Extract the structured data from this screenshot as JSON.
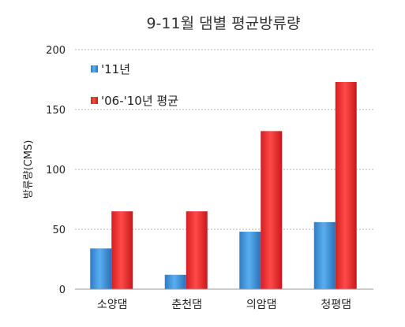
{
  "chart_data": {
    "type": "bar",
    "title": "9-11월 댐별 평균방류량",
    "xlabel": "",
    "ylabel": "방류량(CMS)",
    "ylim": [
      0,
      200
    ],
    "yticks": [
      "0",
      "50",
      "100",
      "150",
      "200"
    ],
    "grid": true,
    "legend_position": "top-left",
    "categories": [
      "소양댐",
      "춘천댐",
      "의암댐",
      "청평댐"
    ],
    "series": [
      {
        "name": "'11년",
        "values": [
          34,
          12,
          48,
          56
        ],
        "color": "#3a8fd6"
      },
      {
        "name": "'06-'10년 평균",
        "values": [
          65,
          65,
          132,
          173
        ],
        "color": "#e8262a"
      }
    ]
  }
}
